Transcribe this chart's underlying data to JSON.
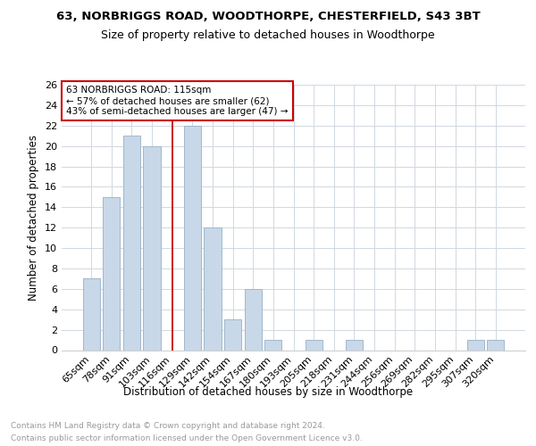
{
  "title1": "63, NORBRIGGS ROAD, WOODTHORPE, CHESTERFIELD, S43 3BT",
  "title2": "Size of property relative to detached houses in Woodthorpe",
  "xlabel": "Distribution of detached houses by size in Woodthorpe",
  "ylabel": "Number of detached properties",
  "footer1": "Contains HM Land Registry data © Crown copyright and database right 2024.",
  "footer2": "Contains public sector information licensed under the Open Government Licence v3.0.",
  "categories": [
    "65sqm",
    "78sqm",
    "91sqm",
    "103sqm",
    "116sqm",
    "129sqm",
    "142sqm",
    "154sqm",
    "167sqm",
    "180sqm",
    "193sqm",
    "205sqm",
    "218sqm",
    "231sqm",
    "244sqm",
    "256sqm",
    "269sqm",
    "282sqm",
    "295sqm",
    "307sqm",
    "320sqm"
  ],
  "values": [
    7,
    15,
    21,
    20,
    0,
    22,
    12,
    3,
    6,
    1,
    0,
    1,
    0,
    1,
    0,
    0,
    0,
    0,
    0,
    1,
    1
  ],
  "bar_color": "#c8d8e8",
  "bar_edge_color": "#a0b8cc",
  "vline_x": 4,
  "vline_color": "#cc0000",
  "annotation_box_color": "#cc0000",
  "annotation_text": "63 NORBRIGGS ROAD: 115sqm\n← 57% of detached houses are smaller (62)\n43% of semi-detached houses are larger (47) →",
  "ylim": [
    0,
    26
  ],
  "yticks": [
    0,
    2,
    4,
    6,
    8,
    10,
    12,
    14,
    16,
    18,
    20,
    22,
    24,
    26
  ],
  "bg_color": "#ffffff",
  "grid_color": "#d0d8e0",
  "title1_fontsize": 9.5,
  "title2_fontsize": 9.0,
  "ylabel_fontsize": 8.5,
  "xlabel_fontsize": 8.5,
  "tick_fontsize": 8.0,
  "annot_fontsize": 7.5,
  "footer_fontsize": 6.5,
  "footer_color": "#999999"
}
